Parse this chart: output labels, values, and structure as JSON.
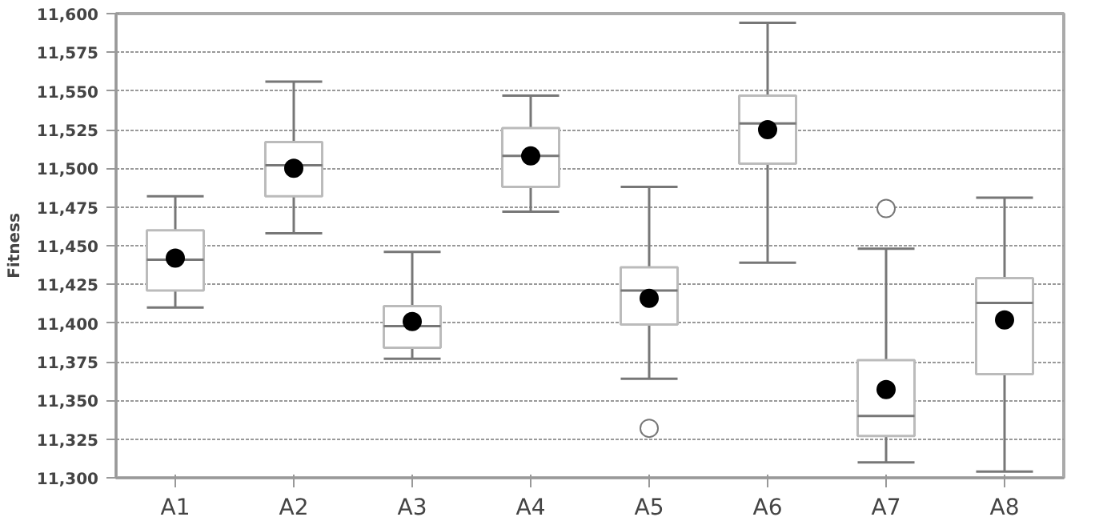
{
  "chart_data": {
    "type": "box",
    "ylabel": "Fitness",
    "categories": [
      "A1",
      "A2",
      "A3",
      "A4",
      "A5",
      "A6",
      "A7",
      "A8"
    ],
    "boxes": [
      {
        "low": 11410,
        "q1": 11421,
        "median": 11441,
        "q3": 11460,
        "high": 11482,
        "mean": 11442
      },
      {
        "low": 11458,
        "q1": 11482,
        "median": 11502,
        "q3": 11517,
        "high": 11556,
        "mean": 11500
      },
      {
        "low": 11377,
        "q1": 11384,
        "median": 11398,
        "q3": 11411,
        "high": 11446,
        "mean": 11401
      },
      {
        "low": 11472,
        "q1": 11488,
        "median": 11508,
        "q3": 11526,
        "high": 11547,
        "mean": 11508
      },
      {
        "low": 11364,
        "q1": 11399,
        "median": 11421,
        "q3": 11436,
        "high": 11488,
        "mean": 11416,
        "outliers": [
          11332
        ]
      },
      {
        "low": 11439,
        "q1": 11503,
        "median": 11529,
        "q3": 11547,
        "high": 11594,
        "mean": 11525
      },
      {
        "low": 11310,
        "q1": 11327,
        "median": 11340,
        "q3": 11376,
        "high": 11448,
        "mean": 11357,
        "outliers": [
          11474
        ]
      },
      {
        "low": 11304,
        "q1": 11367,
        "median": 11413,
        "q3": 11429,
        "high": 11481,
        "mean": 11402
      }
    ],
    "ylim": [
      11300,
      11600
    ],
    "yticks": [
      {
        "value": 11300,
        "label": "11,300"
      },
      {
        "value": 11325,
        "label": "11,325"
      },
      {
        "value": 11350,
        "label": "11,350"
      },
      {
        "value": 11375,
        "label": "11,375"
      },
      {
        "value": 11400,
        "label": "11,400"
      },
      {
        "value": 11425,
        "label": "11,425"
      },
      {
        "value": 11450,
        "label": "11,450"
      },
      {
        "value": 11475,
        "label": "11,475"
      },
      {
        "value": 11500,
        "label": "11,500"
      },
      {
        "value": 11525,
        "label": "11,525"
      },
      {
        "value": 11550,
        "label": "11,550"
      },
      {
        "value": 11575,
        "label": "11,575"
      },
      {
        "value": 11600,
        "label": "11,600"
      }
    ],
    "grid": "y"
  }
}
